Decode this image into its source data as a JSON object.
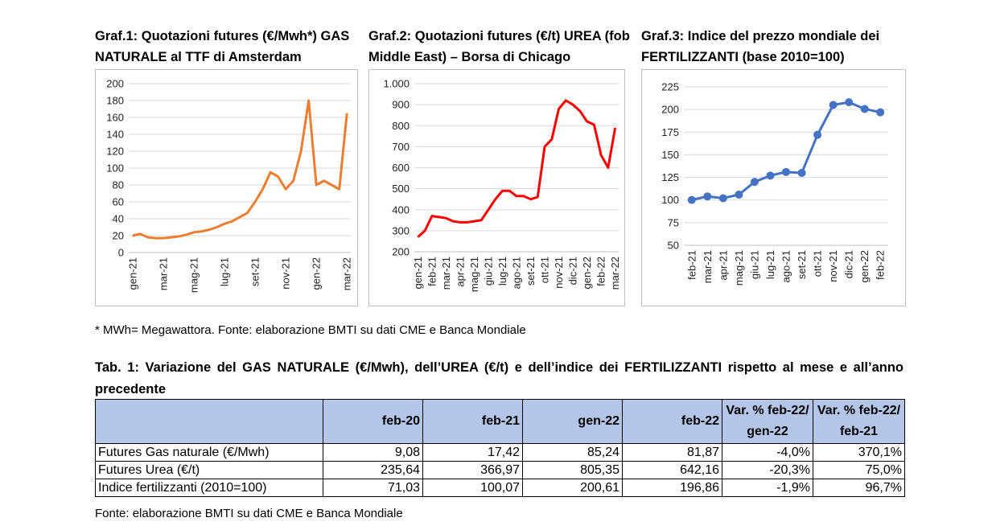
{
  "chart_data": [
    {
      "type": "line",
      "title": "Graf.1: Quotazioni futures (€/Mwh*) GAS NATURALE al TTF di Amsterdam",
      "categories": [
        "gen-21",
        null,
        null,
        null,
        "mar-21",
        null,
        null,
        null,
        "mag-21",
        null,
        null,
        null,
        "lug-21",
        null,
        null,
        null,
        "set-21",
        null,
        null,
        null,
        "nov-21",
        null,
        null,
        null,
        "gen-22",
        null,
        null,
        null,
        "mar-22"
      ],
      "values": [
        20,
        22,
        18,
        17,
        17,
        18,
        19,
        21,
        24,
        25,
        27,
        30,
        34,
        37,
        42,
        47,
        60,
        75,
        95,
        90,
        75,
        85,
        120,
        180,
        80,
        85,
        80,
        75,
        165
      ],
      "color": "#ED7D31",
      "ylim": [
        0,
        200
      ],
      "yticks": [
        0,
        20,
        40,
        60,
        80,
        100,
        120,
        140,
        160,
        180,
        200
      ],
      "grid": true
    },
    {
      "type": "line",
      "title": "Graf.2: Quotazioni futures (€/t) UREA (fob Middle East) – Borsa di Chicago",
      "categories": [
        "gen-21",
        null,
        "feb-21",
        null,
        "mar-21",
        null,
        "apr-21",
        null,
        "mag-21",
        null,
        "giu-21",
        null,
        "lug-21",
        null,
        "ago-21",
        null,
        "set-21",
        null,
        "ott-21",
        null,
        "nov-21",
        null,
        "dic-21",
        null,
        "gen-22",
        null,
        "feb-22",
        null,
        "mar-22"
      ],
      "values": [
        270,
        300,
        370,
        365,
        360,
        345,
        340,
        340,
        345,
        350,
        400,
        450,
        490,
        490,
        465,
        465,
        450,
        460,
        700,
        735,
        880,
        920,
        900,
        870,
        820,
        805,
        660,
        600,
        790
      ],
      "color": "#FF0000",
      "ylim": [
        200,
        1000
      ],
      "yticks": [
        200,
        300,
        400,
        500,
        600,
        700,
        800,
        900,
        {
          "value": 1000,
          "label": "1.000"
        }
      ],
      "grid": true
    },
    {
      "type": "line",
      "title": "Graf.3: Indice del prezzo mondiale dei FERTILIZZANTI (base 2010=100)",
      "categories": [
        "feb-21",
        "mar-21",
        "apr-21",
        "mag-21",
        "giu-21",
        "lug-21",
        "ago-21",
        "set-21",
        "ott-21",
        "nov-21",
        "dic-21",
        "gen-22",
        "feb-22"
      ],
      "values": [
        100.07,
        104,
        102,
        106,
        120,
        127,
        131,
        130,
        172,
        205,
        208,
        200.61,
        196.86
      ],
      "color": "#4472C4",
      "markers": true,
      "ylim": [
        50,
        225
      ],
      "yticks": [
        50,
        75,
        100,
        125,
        150,
        175,
        200,
        225
      ],
      "grid": true
    }
  ],
  "note": "* MWh= Megawattora. Fonte: elaborazione BMTI su dati CME e Banca Mondiale",
  "table": {
    "title": "Tab. 1: Variazione del GAS NATURALE (€/Mwh), dell’UREA (€/t) e dell’indice dei FERTILIZZANTI rispetto al mese e all’anno precedente",
    "header": [
      "feb-20",
      "feb-21",
      "gen-22",
      "feb-22",
      "Var. % feb-22/ gen-22",
      "Var. % feb-22/ feb-21"
    ],
    "rows": [
      {
        "label": "Futures Gas naturale (€/Mwh)",
        "values": [
          "9,08",
          "17,42",
          "85,24",
          "81,87",
          "-4,0%",
          "370,1%"
        ]
      },
      {
        "label": "Futures Urea (€/t)",
        "values": [
          "235,64",
          "366,97",
          "805,35",
          "642,16",
          "-20,3%",
          "75,0%"
        ]
      },
      {
        "label": "Indice fertilizzanti (2010=100)",
        "values": [
          "71,03",
          "100,07",
          "200,61",
          "196,86",
          "-1,9%",
          "96,7%"
        ]
      }
    ]
  },
  "source": "Fonte: elaborazione BMTI su dati CME e Banca Mondiale"
}
